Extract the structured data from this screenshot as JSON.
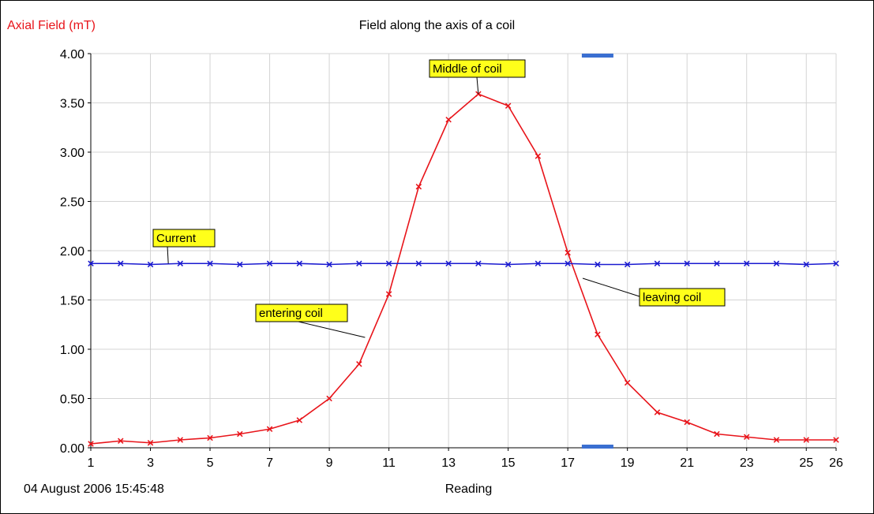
{
  "chart_data": {
    "type": "line",
    "title": "Field along the axis of a coil",
    "ylabel": "Axial Field (mT)",
    "xlabel": "Reading",
    "timestamp": "04 August 2006  15:45:48",
    "xlim": [
      1,
      26
    ],
    "ylim": [
      0,
      4
    ],
    "grid": true,
    "x_ticks": [
      "1",
      "3",
      "5",
      "7",
      "9",
      "11",
      "13",
      "15",
      "17",
      "19",
      "21",
      "23",
      "25",
      "26"
    ],
    "y_ticks": [
      "0.00",
      "0.50",
      "1.00",
      "1.50",
      "2.00",
      "2.50",
      "3.00",
      "3.50",
      "4.00"
    ],
    "x": [
      1,
      2,
      3,
      4,
      5,
      6,
      7,
      8,
      9,
      10,
      11,
      12,
      13,
      14,
      15,
      16,
      17,
      18,
      19,
      20,
      21,
      22,
      23,
      24,
      25,
      26
    ],
    "series": [
      {
        "values": [
          0.04,
          0.07,
          0.05,
          0.08,
          0.1,
          0.14,
          0.19,
          0.28,
          0.5,
          0.85,
          1.56,
          2.65,
          3.33,
          3.59,
          3.47,
          2.96,
          1.98,
          1.15,
          0.66,
          0.36,
          0.26,
          0.14,
          0.11,
          0.08,
          0.08,
          0.08
        ],
        "color": "#e8141a"
      },
      {
        "values": [
          1.87,
          1.87,
          1.86,
          1.87,
          1.87,
          1.86,
          1.87,
          1.87,
          1.86,
          1.87,
          1.87,
          1.87,
          1.87,
          1.87,
          1.86,
          1.87,
          1.87,
          1.86,
          1.86,
          1.87,
          1.87,
          1.87,
          1.87,
          1.87,
          1.86,
          1.87
        ],
        "color": "#1a1ad0"
      }
    ],
    "annotations": [
      {
        "text": "Middle of coil",
        "x": 14,
        "y": 3.59
      },
      {
        "text": "Current",
        "x": 3.6,
        "y": 1.87
      },
      {
        "text": "entering coil",
        "x": 10.2,
        "y": 1.12
      },
      {
        "text": "leaving coil",
        "x": 17.5,
        "y": 1.72
      }
    ],
    "cursor_x": 18,
    "cursor_color": "#3a6fd1"
  }
}
